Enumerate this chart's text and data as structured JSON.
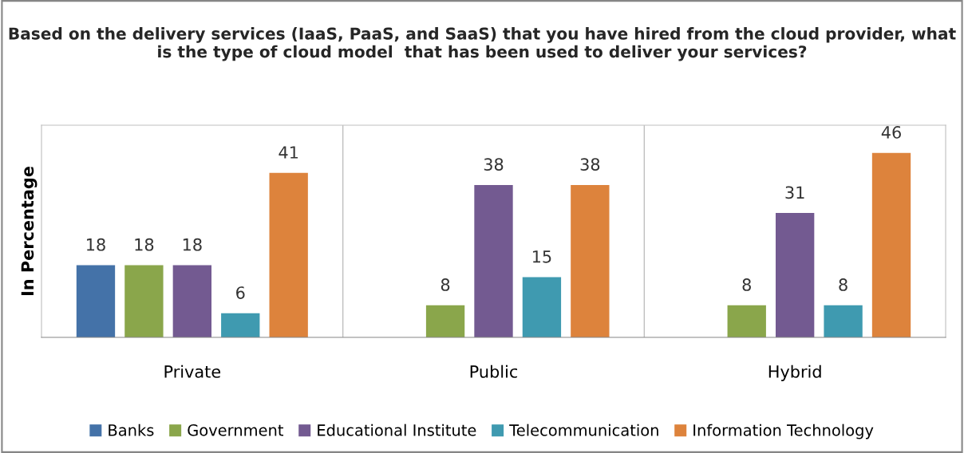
{
  "chart_data": {
    "type": "bar",
    "title": "Based on the delivery services (IaaS, PaaS, and SaaS) that you have hired from the cloud provider, what is the type of cloud model  that has been used to deliver your services?",
    "ylabel": "In Percentage",
    "categories": [
      "Private",
      "Public",
      "Hybrid"
    ],
    "series": [
      {
        "name": "Banks",
        "color": "#4472a8",
        "values": [
          18,
          null,
          null
        ]
      },
      {
        "name": "Government",
        "color": "#8aa64b",
        "values": [
          18,
          8,
          8
        ]
      },
      {
        "name": "Educational Institute",
        "color": "#735a91",
        "values": [
          18,
          38,
          31
        ]
      },
      {
        "name": "Telecommunication",
        "color": "#3f9ab0",
        "values": [
          6,
          15,
          8
        ]
      },
      {
        "name": "Information Technology",
        "color": "#dd833c",
        "values": [
          41,
          38,
          46
        ]
      }
    ],
    "data_labels": true,
    "grid": false,
    "legend": "bottom",
    "tick_labels": "x"
  }
}
